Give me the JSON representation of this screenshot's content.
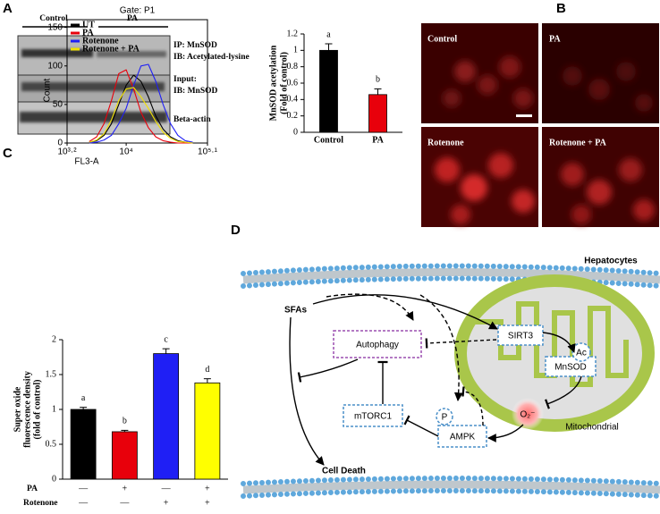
{
  "chart_data": [
    {
      "type": "bar",
      "ylabel": [
        "MnSOD acetylation",
        "(Fold of control)"
      ],
      "categories": [
        "Control",
        "PA"
      ],
      "values": [
        1,
        0.46
      ],
      "errors": [
        0.08,
        0.07
      ],
      "annotations": [
        "a",
        "b"
      ],
      "colors": [
        "#000000",
        "#e8000b"
      ],
      "ylim": [
        0,
        1.2
      ],
      "yticks": [
        0,
        0.2,
        0.4,
        0.6,
        0.8,
        1,
        1.2
      ]
    },
    {
      "type": "line",
      "title": "Gate: P1",
      "xlabel": "FL3-A",
      "ylabel": "Count",
      "xscale": "log",
      "x": [
        3162,
        3981,
        5012,
        6310,
        7943,
        10000,
        12589,
        15849,
        19953,
        25119,
        31623,
        39811,
        50119,
        63096,
        79433
      ],
      "series": [
        {
          "name": "UT",
          "color": "#000000",
          "values": [
            1,
            3,
            10,
            25,
            50,
            75,
            88,
            80,
            60,
            35,
            18,
            8,
            3,
            1,
            0
          ]
        },
        {
          "name": "PA",
          "color": "#e8000b",
          "values": [
            2,
            8,
            25,
            55,
            90,
            95,
            70,
            40,
            20,
            8,
            3,
            1,
            0,
            0,
            0
          ]
        },
        {
          "name": "Rotenone",
          "color": "#1f1ff5",
          "values": [
            0,
            1,
            4,
            10,
            25,
            45,
            75,
            100,
            102,
            80,
            50,
            25,
            10,
            3,
            1
          ]
        },
        {
          "name": "Rotenone + PA",
          "color": "#f2e200",
          "values": [
            1,
            4,
            12,
            30,
            55,
            70,
            72,
            60,
            45,
            28,
            14,
            6,
            2,
            1,
            0
          ]
        }
      ],
      "xlim": [
        1585,
        125893
      ],
      "xticks": [
        {
          "value": 1585,
          "label": "10³·²"
        },
        {
          "value": 10000,
          "label": "10⁴"
        },
        {
          "value": 125893,
          "label": "10⁵·¹"
        }
      ],
      "ylim": [
        0,
        160
      ],
      "yticks": [
        0,
        50,
        100,
        150
      ]
    },
    {
      "type": "bar",
      "ylabel": [
        "Super oxide",
        "fluorescence density",
        "(fold of control)"
      ],
      "categories": [
        null,
        null,
        null,
        null
      ],
      "values": [
        1,
        0.68,
        1.8,
        1.38
      ],
      "errors": [
        0.03,
        0.02,
        0.07,
        0.06
      ],
      "annotations": [
        "a",
        "b",
        "c",
        "d"
      ],
      "colors": [
        "#000000",
        "#e8000b",
        "#1f1ff5",
        "#ffff00"
      ],
      "ylim": [
        0,
        2
      ],
      "yticks": [
        0,
        0.5,
        1,
        1.5,
        2
      ]
    }
  ],
  "figure": {
    "panel_labels": [
      "A",
      "B",
      "C",
      "D"
    ],
    "blot": {
      "groups": [
        "Control",
        "PA"
      ],
      "labels": [
        "IP: MnSOD",
        "IB: Acetylated-lysine",
        "Input:",
        "IB: MnSOD",
        "Beta-actin"
      ]
    },
    "images": [
      "Control",
      "PA",
      "Rotenone",
      "Rotenone + PA"
    ],
    "treatments": [
      {
        "label": "PA",
        "marks": [
          "—",
          "+",
          "—",
          "+"
        ]
      },
      {
        "label": "Rotenone",
        "marks": [
          "—",
          "—",
          "+",
          "+"
        ]
      }
    ],
    "diagram": {
      "cell": "Hepatocytes",
      "sfas": "SFAs",
      "autophagy": "Autophagy",
      "sirt3": "SIRT3",
      "ac": "Ac",
      "mnsod": "MnSOD",
      "mtorc1": "mTORC1",
      "superoxide": "O₂⁻",
      "mitochondrial": "Mitochondrial",
      "p": "P",
      "ampk": "AMPK",
      "cell_death": "Cell Death"
    }
  }
}
